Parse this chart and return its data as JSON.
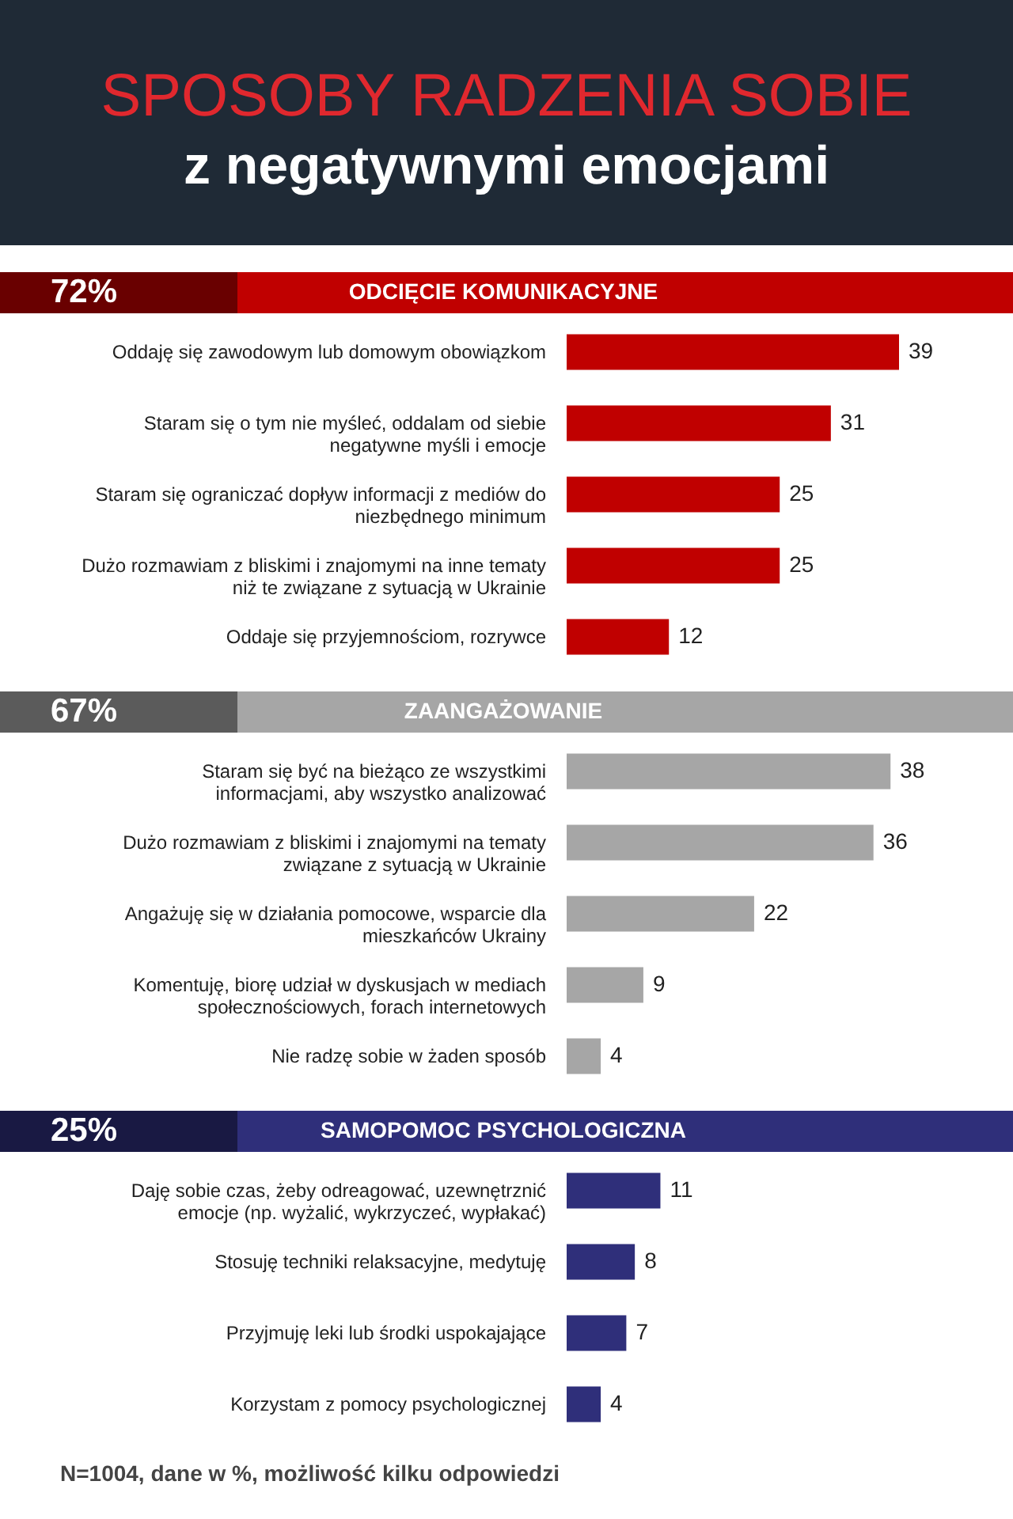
{
  "chart_data": [
    {
      "type": "bar",
      "orientation": "horizontal",
      "data_labels": true,
      "title": "ODCIĘCIE KOMUNIKACYJNE",
      "subtitle": "72%",
      "annotations": [
        "SPOSOBY RADZENIA SOBIE",
        "z negatywnymi emocjami"
      ],
      "categories": [
        "Oddaję się zawodowym lub domowym obowiązkom",
        "Staram się o tym nie myśleć, oddalam od siebie negatywne myśli i emocje",
        "Staram się ograniczać dopływ informacji z mediów do niezbędnego minimum",
        "Dużo rozmawiam z bliskimi i znajomymi na inne tematy niż te związane z sytuacją w Ukrainie",
        "Oddaje się przyjemnościom, rozrywce"
      ],
      "series": [
        {
          "color": "#c00000",
          "values": [
            39,
            31,
            25,
            25,
            12
          ]
        }
      ]
    },
    {
      "type": "bar",
      "orientation": "horizontal",
      "data_labels": true,
      "title": "ZAANGAŻOWANIE",
      "subtitle": "67%",
      "categories": [
        "Staram się być na bieżąco ze wszystkimi informacjami, aby wszystko analizować",
        "Dużo rozmawiam z bliskimi i znajomymi na tematy związane z sytuacją w Ukrainie",
        "Angażuję się w działania pomocowe, wsparcie dla mieszkańców Ukrainy",
        "Komentuję, biorę udział w dyskusjach w mediach społecznościowych, forach internetowych",
        "Nie radzę sobie w żaden sposób"
      ],
      "series": [
        {
          "color": "#a6a6a6",
          "values": [
            38,
            36,
            22,
            9,
            4
          ]
        }
      ]
    },
    {
      "type": "bar",
      "orientation": "horizontal",
      "data_labels": true,
      "title": "SAMOPOMOC PSYCHOLOGICZNA",
      "subtitle": "25%",
      "annotations": [
        "N=1004, dane w %, możliwość kilku odpowiedzi"
      ],
      "categories": [
        "Daję sobie czas, żeby odreagować, uzewnętrznić emocje (np. wyżalić, wykrzyczeć, wypłakać)",
        "Stosuję techniki relaksacyjne, medytuję",
        "Przyjmuję leki lub środki uspokajające",
        "Korzystam z pomocy psychologicznej"
      ],
      "series": [
        {
          "color": "#2f2f7a",
          "values": [
            11,
            8,
            7,
            4
          ]
        }
      ]
    }
  ]
}
